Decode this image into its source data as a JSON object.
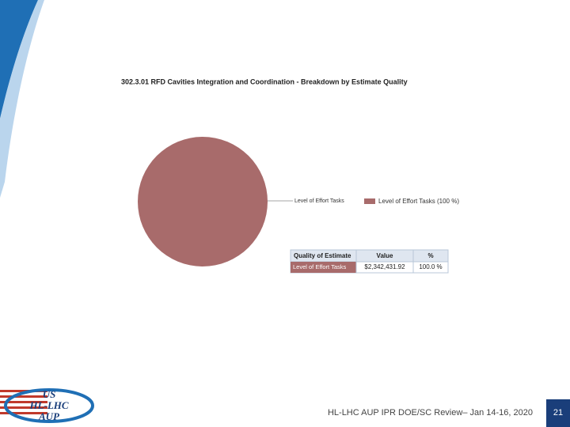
{
  "chart_data": {
    "type": "pie",
    "title": "302.3.01 RFD Cavities Integration and Coordination - Breakdown by Estimate Quality",
    "categories": [
      "Level of Effort Tasks"
    ],
    "values": [
      100
    ],
    "colors": [
      "#a86b6b"
    ],
    "legend_labels": [
      "Level of Effort Tasks (100 %)"
    ]
  },
  "table": {
    "header": [
      "Quality of Estimate",
      "Value",
      "%"
    ],
    "rows": [
      [
        "Level of Effort Tasks",
        "$2,342,431.92",
        "100.0 %"
      ]
    ]
  },
  "logo": {
    "line1": "US",
    "line2": "HL-LHC",
    "line3": "AUP"
  },
  "footer": {
    "text": "HL-LHC AUP IPR DOE/SC Review– Jan 14-16, 2020",
    "page": "21"
  }
}
